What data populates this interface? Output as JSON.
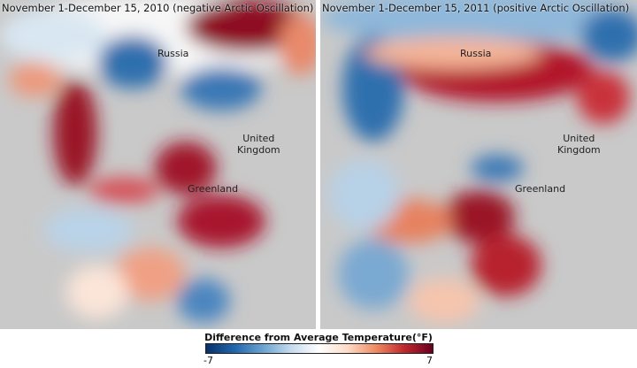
{
  "panels": [
    {
      "title": "November 1-December 15, 2010 (negative Arctic Oscillation)",
      "labels": {
        "russia": "Russia",
        "uk": "United\nKingdom",
        "greenland": "Greenland"
      }
    },
    {
      "title": "November 1-December 15, 2011 (positive Arctic Oscillation)",
      "labels": {
        "russia": "Russia",
        "uk": "United\nKingdom",
        "greenland": "Greenland"
      }
    }
  ],
  "legend": {
    "title": "Difference from Average Temperature(°F)",
    "min": "-7",
    "max": "7",
    "colors": {
      "cold": "#08306b",
      "neutral": "#ffffff",
      "warm": "#67001f"
    }
  },
  "colors": {
    "land": "#c9c9c9",
    "ocean": "#ffffff"
  }
}
